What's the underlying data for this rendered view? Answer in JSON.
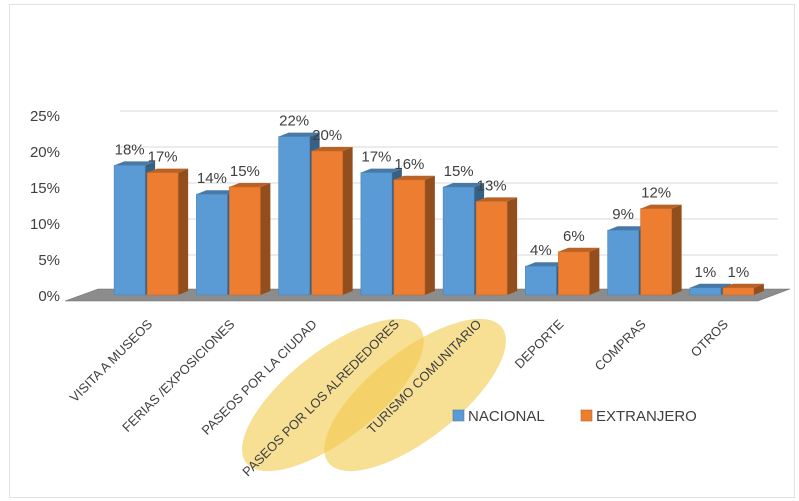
{
  "chart_data": {
    "type": "bar",
    "title": "",
    "xlabel": "",
    "ylabel": "",
    "ylim": [
      0,
      25
    ],
    "yticks": [
      "0%",
      "5%",
      "10%",
      "15%",
      "20%",
      "25%"
    ],
    "grid": true,
    "legend_position": "bottom-right",
    "categories": [
      "VISITA A MUSEOS",
      "FERIAS /EXPOSICIONES",
      "PASEOS POR LA CIUDAD",
      "PASEOS POR LOS ALREDEDORES",
      "TURISMO COMUNITARIO",
      "DEPORTE",
      "COMPRAS",
      "OTROS"
    ],
    "series": [
      {
        "name": "NACIONAL",
        "values": [
          18,
          14,
          22,
          17,
          15,
          4,
          9,
          1
        ],
        "labels": [
          "18%",
          "14%",
          "22%",
          "17%",
          "15%",
          "4%",
          "9%",
          "1%"
        ],
        "color": "#5b9bd5"
      },
      {
        "name": "EXTRANJERO",
        "values": [
          17,
          15,
          20,
          16,
          13,
          6,
          12,
          1
        ],
        "labels": [
          "17%",
          "15%",
          "20%",
          "16%",
          "13%",
          "6%",
          "12%",
          "1%"
        ],
        "color": "#ed7d31"
      }
    ],
    "highlighted_categories": [
      "PASEOS POR LOS ALREDEDORES",
      "TURISMO COMUNITARIO"
    ],
    "highlight_color": "#f2c94c"
  }
}
